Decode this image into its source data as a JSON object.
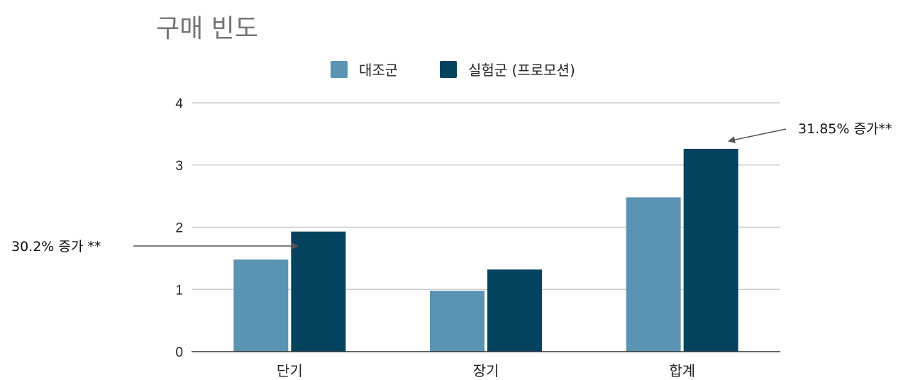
{
  "chart_data": {
    "type": "bar",
    "title": "구매 빈도",
    "categories": [
      "단기",
      "장기",
      "합계"
    ],
    "series": [
      {
        "name": "대조군",
        "values": [
          1.48,
          0.98,
          2.48
        ]
      },
      {
        "name": "실험군 (프로모션)",
        "values": [
          1.93,
          1.32,
          3.26
        ]
      }
    ],
    "ylim": [
      0,
      4
    ],
    "yticks": [
      0,
      1,
      2,
      3,
      4
    ],
    "grid": true,
    "legend_position": "top",
    "annotations": [
      {
        "text": "30.2% 증가 **",
        "target_category": "단기"
      },
      {
        "text": "31.85% 증가**",
        "target_category": "합계"
      }
    ],
    "colors": {
      "control": "#5b93b2",
      "treatment": "#03435e",
      "grid": "#cccccc",
      "axis": "#333333",
      "arrow": "#555555"
    }
  }
}
